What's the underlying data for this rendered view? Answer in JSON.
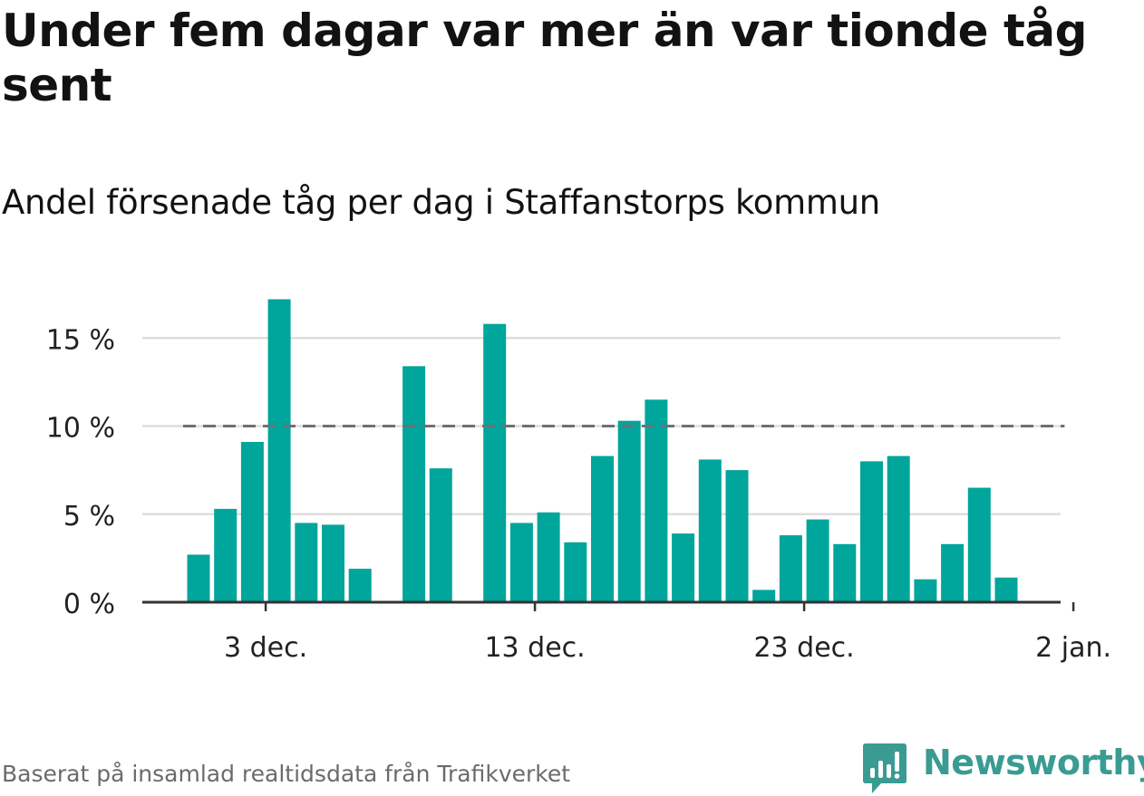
{
  "title": "Under fem dagar var mer än var tionde tåg sent",
  "subtitle": "Andel försenade tåg per dag i Staffanstorps kommun",
  "source": "Baserat på insamlad realtidsdata från Trafikverket",
  "logo": {
    "text": "Newsworthy",
    "icon": "newsworthy-logo-icon"
  },
  "colors": {
    "bar": "#00a59b",
    "reference_line": "#6e7077",
    "grid": "#dddddd",
    "axis": "#333333",
    "logo": "#3a9b93"
  },
  "chart_data": {
    "type": "bar",
    "x_unit": "day",
    "x": [
      "2023-11-30",
      "2023-12-01",
      "2023-12-02",
      "2023-12-03",
      "2023-12-04",
      "2023-12-05",
      "2023-12-06",
      "2023-12-07",
      "2023-12-08",
      "2023-12-09",
      "2023-12-10",
      "2023-12-11",
      "2023-12-12",
      "2023-12-13",
      "2023-12-14",
      "2023-12-15",
      "2023-12-16",
      "2023-12-17",
      "2023-12-18",
      "2023-12-19",
      "2023-12-20",
      "2023-12-21",
      "2023-12-22",
      "2023-12-23",
      "2023-12-24",
      "2023-12-25",
      "2023-12-26",
      "2023-12-27",
      "2023-12-28",
      "2023-12-29",
      "2023-12-30",
      "2023-12-31",
      "2024-01-01"
    ],
    "values": [
      2.7,
      5.3,
      9.1,
      17.2,
      4.5,
      4.4,
      1.9,
      null,
      13.4,
      7.6,
      null,
      15.8,
      4.5,
      5.1,
      3.4,
      8.3,
      10.3,
      11.5,
      3.9,
      8.1,
      7.5,
      0.7,
      3.8,
      4.7,
      3.3,
      8.0,
      8.3,
      1.3,
      3.3,
      6.5,
      1.4,
      null,
      null
    ],
    "reference_line": {
      "value": 10,
      "from": "2023-11-30",
      "to": "2024-01-01",
      "style": "dashed"
    },
    "y_ticks": [
      0,
      5,
      10,
      15
    ],
    "y_tick_labels": [
      "0 %",
      "5 %",
      "10 %",
      "15 %"
    ],
    "x_ticks": [
      "2023-12-03",
      "2023-12-13",
      "2023-12-23",
      "2024-01-02"
    ],
    "x_tick_labels": [
      "3 dec.",
      "13 dec.",
      "23 dec.",
      "2 jan."
    ],
    "ylim": [
      0,
      18
    ],
    "grid": true,
    "legend": "none"
  }
}
